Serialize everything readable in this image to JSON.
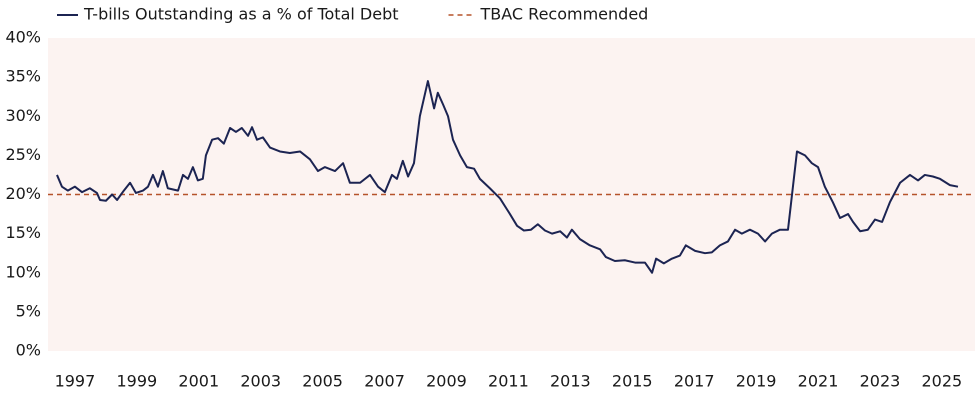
{
  "chart_data": {
    "type": "line",
    "series": [
      {
        "name": "T-bills Outstanding as a % of Total Debt",
        "color": "#1c2452",
        "x": [
          1996.42,
          1996.58,
          1996.77,
          1997.0,
          1997.23,
          1997.48,
          1997.71,
          1997.81,
          1998.0,
          1998.2,
          1998.36,
          1998.58,
          1998.78,
          1998.97,
          1999.2,
          1999.36,
          1999.52,
          1999.68,
          1999.84,
          2000.0,
          2000.33,
          2000.49,
          2000.65,
          2000.81,
          2000.97,
          2001.13,
          2001.23,
          2001.43,
          2001.62,
          2001.81,
          2002.01,
          2002.2,
          2002.39,
          2002.59,
          2002.72,
          2002.88,
          2003.07,
          2003.3,
          2003.62,
          2003.94,
          2004.27,
          2004.59,
          2004.85,
          2005.07,
          2005.4,
          2005.66,
          2005.88,
          2006.21,
          2006.53,
          2006.79,
          2007.01,
          2007.24,
          2007.4,
          2007.59,
          2007.76,
          2007.95,
          2008.14,
          2008.4,
          2008.6,
          2008.72,
          2008.89,
          2009.05,
          2009.21,
          2009.44,
          2009.66,
          2009.89,
          2010.08,
          2010.4,
          2010.73,
          2011.05,
          2011.28,
          2011.5,
          2011.73,
          2011.95,
          2012.18,
          2012.41,
          2012.67,
          2012.89,
          2013.05,
          2013.31,
          2013.63,
          2013.96,
          2014.15,
          2014.44,
          2014.76,
          2015.09,
          2015.41,
          2015.64,
          2015.77,
          2016.02,
          2016.28,
          2016.54,
          2016.73,
          2017.03,
          2017.35,
          2017.57,
          2017.83,
          2018.09,
          2018.32,
          2018.54,
          2018.8,
          2019.06,
          2019.29,
          2019.51,
          2019.77,
          2020.03,
          2020.19,
          2020.32,
          2020.58,
          2020.8,
          2021.0,
          2021.22,
          2021.48,
          2021.71,
          2021.97,
          2022.13,
          2022.36,
          2022.61,
          2022.84,
          2023.07,
          2023.32,
          2023.65,
          2023.97,
          2024.23,
          2024.45,
          2024.71,
          2024.94,
          2025.26,
          2025.52
        ],
        "values": [
          22.5,
          21,
          20.5,
          21,
          20.3,
          20.8,
          20.2,
          19.3,
          19.2,
          20,
          19.3,
          20.5,
          21.5,
          20.2,
          20.5,
          21,
          22.5,
          21,
          23,
          20.8,
          20.5,
          22.5,
          22,
          23.5,
          21.8,
          22,
          25,
          27,
          27.2,
          26.5,
          28.5,
          28,
          28.5,
          27.5,
          28.6,
          27,
          27.3,
          26,
          25.5,
          25.3,
          25.5,
          24.5,
          23,
          23.5,
          23,
          24,
          21.5,
          21.5,
          22.5,
          21,
          20.3,
          22.5,
          22,
          24.3,
          22.3,
          24,
          30,
          34.5,
          31,
          33,
          31.5,
          30,
          27,
          25,
          23.5,
          23.3,
          22,
          20.8,
          19.5,
          17.5,
          16,
          15.4,
          15.5,
          16.2,
          15.4,
          15,
          15.3,
          14.5,
          15.5,
          14.3,
          13.5,
          13,
          12,
          11.5,
          11.6,
          11.3,
          11.3,
          10,
          11.8,
          11.2,
          11.8,
          12.2,
          13.5,
          12.8,
          12.5,
          12.6,
          13.5,
          14,
          15.5,
          15,
          15.5,
          15,
          14,
          15,
          15.5,
          15.5,
          21,
          25.5,
          25,
          24,
          23.5,
          21,
          19,
          17,
          17.5,
          16.5,
          15.3,
          15.5,
          16.8,
          16.5,
          19,
          21.5,
          22.5,
          21.8,
          22.5,
          22.3,
          22,
          21.2,
          21
        ]
      }
    ],
    "reference_lines": [
      {
        "name": "TBAC Recommended",
        "value": 20,
        "color": "#b5532a",
        "dashed": true
      }
    ],
    "xlim": [
      1996.13,
      2026.07
    ],
    "xticks": [
      1997,
      1999,
      2001,
      2003,
      2005,
      2007,
      2009,
      2011,
      2013,
      2015,
      2017,
      2019,
      2021,
      2023,
      2025
    ],
    "ylim": [
      0,
      40
    ],
    "yticks": [
      {
        "value": 0,
        "label": "0%"
      },
      {
        "value": 5,
        "label": "5%"
      },
      {
        "value": 10,
        "label": "10%"
      },
      {
        "value": 15,
        "label": "15%"
      },
      {
        "value": 20,
        "label": "20%"
      },
      {
        "value": 25,
        "label": "25%"
      },
      {
        "value": 30,
        "label": "30%"
      },
      {
        "value": 35,
        "label": "35%"
      },
      {
        "value": 40,
        "label": "40%"
      }
    ],
    "grid": false,
    "legend": "top",
    "plot_background": "#fcf3f1"
  }
}
